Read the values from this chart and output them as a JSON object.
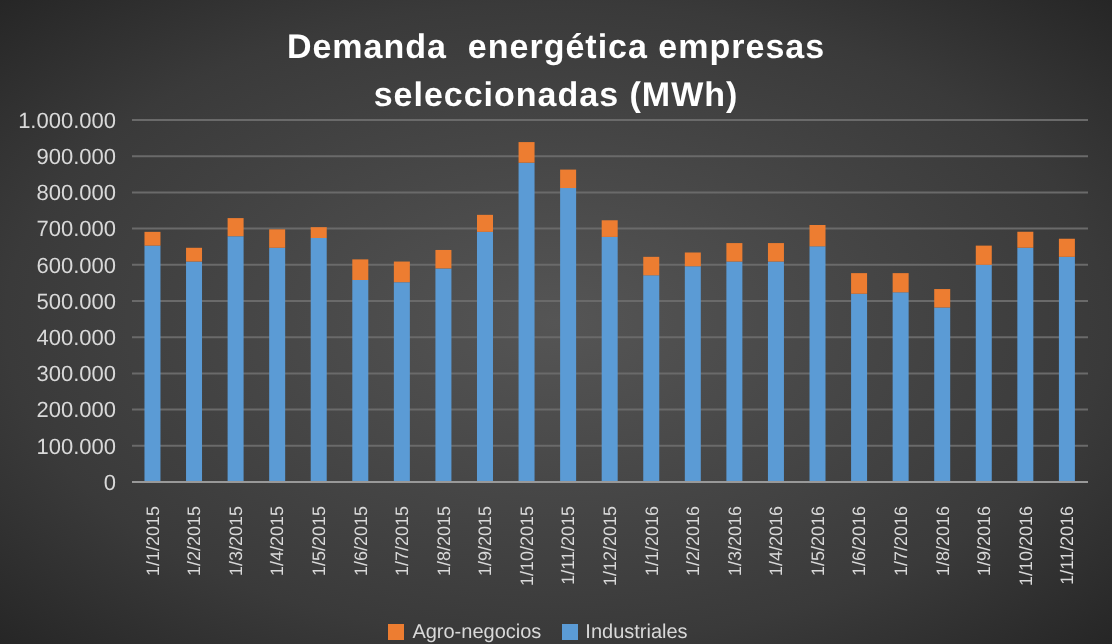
{
  "chart_data": {
    "type": "bar",
    "title": "Demanda  energética empresas seleccionadas (MWh)",
    "stacked": true,
    "legend": "bottom",
    "grid": "y",
    "categories": [
      "1/1/2015",
      "1/2/2015",
      "1/3/2015",
      "1/4/2015",
      "1/5/2015",
      "1/6/2015",
      "1/7/2015",
      "1/8/2015",
      "1/9/2015",
      "1/10/2015",
      "1/11/2015",
      "1/12/2015",
      "1/1/2016",
      "1/2/2016",
      "1/3/2016",
      "1/4/2016",
      "1/5/2016",
      "1/6/2016",
      "1/7/2016",
      "1/8/2016",
      "1/9/2016",
      "1/10/2016",
      "1/11/2016"
    ],
    "ylim": [
      0,
      1000000
    ],
    "yticks": [
      {
        "value": 0,
        "label": "0"
      },
      {
        "value": 100000,
        "label": "100.000"
      },
      {
        "value": 200000,
        "label": "200.000"
      },
      {
        "value": 300000,
        "label": "300.000"
      },
      {
        "value": 400000,
        "label": "400.000"
      },
      {
        "value": 500000,
        "label": "500.000"
      },
      {
        "value": 600000,
        "label": "600.000"
      },
      {
        "value": 700000,
        "label": "700.000"
      },
      {
        "value": 800000,
        "label": "800.000"
      },
      {
        "value": 900000,
        "label": "900.000"
      },
      {
        "value": 1000000,
        "label": "1.000.000"
      }
    ],
    "series": [
      {
        "name": "Industriales",
        "color": "#5b9bd5",
        "values": [
          653000,
          609000,
          679000,
          647000,
          674000,
          558000,
          552000,
          590000,
          691000,
          882000,
          812000,
          677000,
          571000,
          596000,
          609000,
          609000,
          651000,
          520000,
          524000,
          482000,
          600000,
          647000,
          622000
        ]
      },
      {
        "name": "Agro-negocios",
        "color": "#ed7d31",
        "values": [
          38000,
          38000,
          50000,
          51000,
          30000,
          57000,
          57000,
          51000,
          47000,
          57000,
          51000,
          46000,
          51000,
          38000,
          51000,
          51000,
          59000,
          57000,
          53000,
          51000,
          53000,
          44000,
          50000
        ]
      }
    ]
  }
}
